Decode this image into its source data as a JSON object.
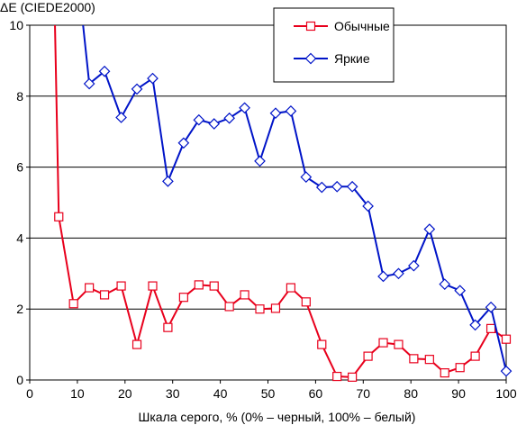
{
  "chart_data": {
    "type": "line",
    "title": "",
    "ylabel": "ΔE (CIEDE2000)",
    "xlabel": "Шкала серого, % (0% – черный, 100% – белый)",
    "xlim": [
      0,
      100
    ],
    "ylim": [
      0,
      10
    ],
    "x_ticks": [
      0,
      10,
      20,
      30,
      40,
      50,
      60,
      70,
      80,
      90,
      100
    ],
    "y_ticks": [
      0,
      2,
      4,
      6,
      8,
      10
    ],
    "grid": "horizontal",
    "legend_position": "top-right",
    "series": [
      {
        "name": "Обычные",
        "color": "#e8001c",
        "marker": "square",
        "points": [
          [
            6.1,
            4.6
          ],
          [
            9.2,
            2.15
          ],
          [
            12.5,
            2.6
          ],
          [
            15.7,
            2.4
          ],
          [
            19.2,
            2.65
          ],
          [
            22.5,
            1.0
          ],
          [
            25.8,
            2.65
          ],
          [
            29.0,
            1.48
          ],
          [
            32.3,
            2.33
          ],
          [
            35.5,
            2.68
          ],
          [
            38.7,
            2.65
          ],
          [
            41.9,
            2.07
          ],
          [
            45.1,
            2.4
          ],
          [
            48.3,
            2.0
          ],
          [
            51.6,
            2.02
          ],
          [
            54.8,
            2.6
          ],
          [
            58.0,
            2.2
          ],
          [
            61.3,
            1.0
          ],
          [
            64.5,
            0.1
          ],
          [
            67.7,
            0.08
          ],
          [
            71.0,
            0.67
          ],
          [
            74.2,
            1.05
          ],
          [
            77.4,
            1.0
          ],
          [
            80.6,
            0.6
          ],
          [
            83.9,
            0.58
          ],
          [
            87.1,
            0.2
          ],
          [
            90.3,
            0.35
          ],
          [
            93.5,
            0.67
          ],
          [
            96.8,
            1.45
          ],
          [
            100.0,
            1.15
          ]
        ],
        "line_start": [
          5.3,
          10.0
        ]
      },
      {
        "name": "Яркие",
        "color": "#0014c8",
        "marker": "diamond",
        "points": [
          [
            12.5,
            8.35
          ],
          [
            15.7,
            8.7
          ],
          [
            19.2,
            7.4
          ],
          [
            22.5,
            8.2
          ],
          [
            25.8,
            8.5
          ],
          [
            29.0,
            5.6
          ],
          [
            32.3,
            6.68
          ],
          [
            35.5,
            7.33
          ],
          [
            38.7,
            7.22
          ],
          [
            41.9,
            7.38
          ],
          [
            45.1,
            7.67
          ],
          [
            48.3,
            6.17
          ],
          [
            51.6,
            7.52
          ],
          [
            54.8,
            7.58
          ],
          [
            58.0,
            5.72
          ],
          [
            61.3,
            5.43
          ],
          [
            64.5,
            5.45
          ],
          [
            67.7,
            5.45
          ],
          [
            71.0,
            4.9
          ],
          [
            74.2,
            2.92
          ],
          [
            77.4,
            3.0
          ],
          [
            80.6,
            3.22
          ],
          [
            83.9,
            4.25
          ],
          [
            87.1,
            2.7
          ],
          [
            90.3,
            2.52
          ],
          [
            93.5,
            1.55
          ],
          [
            96.8,
            2.05
          ],
          [
            100.0,
            0.25
          ]
        ],
        "line_start": [
          11.2,
          10.0
        ]
      }
    ]
  }
}
